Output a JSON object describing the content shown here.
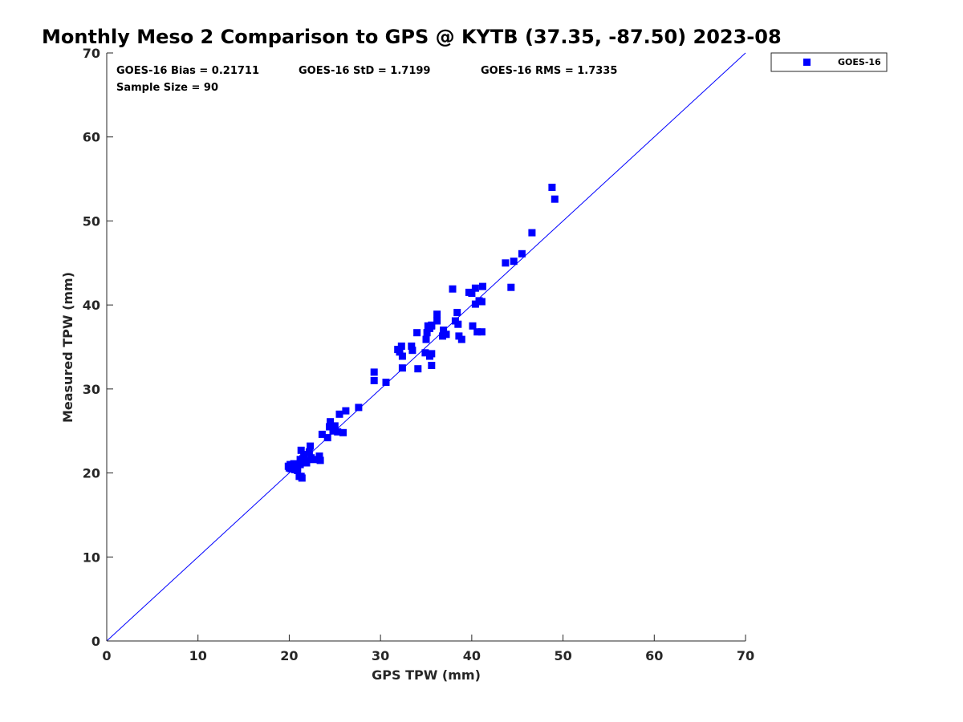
{
  "colors": {
    "marker": "#0000ff",
    "reference_line": "#0000ff",
    "axis": "#262626"
  },
  "chart_data": {
    "type": "scatter",
    "title": "Monthly Meso 2 Comparison to GPS @ KYTB (37.35, -87.50) 2023-08",
    "xlabel": "GPS TPW (mm)",
    "ylabel": "Measured TPW (mm)",
    "xlim": [
      0,
      70
    ],
    "ylim": [
      0,
      70
    ],
    "xticks": [
      "0",
      "10",
      "20",
      "30",
      "40",
      "50",
      "60",
      "70"
    ],
    "yticks": [
      "0",
      "10",
      "20",
      "30",
      "40",
      "50",
      "60",
      "70"
    ],
    "legend": {
      "placement": "outside-top-right",
      "entries": [
        "GOES-16"
      ]
    },
    "stats": {
      "bias": "GOES-16 Bias = 0.21711",
      "std": "GOES-16 StD = 1.7199",
      "rms": "GOES-16 RMS = 1.7335",
      "sample_size": "Sample Size = 90"
    },
    "reference_line": {
      "label": "1:1 line",
      "from": [
        0,
        0
      ],
      "to": [
        70,
        70
      ]
    },
    "series": [
      {
        "name": "GOES-16",
        "marker": "square",
        "x": [
          48.8,
          49.1,
          46.6,
          45.5,
          44.6,
          43.7,
          44.3,
          41.2,
          40.4,
          40.0,
          39.7,
          40.8,
          41.1,
          40.4,
          40.1,
          41.1,
          40.6,
          37.9,
          38.4,
          38.2,
          38.5,
          36.2,
          36.2,
          35.6,
          35.2,
          35.4,
          35.1,
          35.0,
          36.8,
          37.2,
          36.9,
          38.6,
          38.9,
          34.0,
          33.4,
          33.5,
          32.3,
          31.9,
          32.1,
          32.4,
          34.9,
          35.4,
          35.6,
          35.6,
          34.1,
          32.4,
          35.6,
          29.3,
          29.3,
          30.6,
          27.6,
          26.2,
          25.5,
          24.5,
          24.4,
          25.0,
          24.8,
          25.3,
          25.9,
          23.6,
          24.2,
          23.3,
          23.4,
          23.3,
          22.3,
          22.2,
          22.4,
          22.6,
          21.9,
          21.6,
          21.9,
          21.3,
          21.6,
          21.2,
          21.3,
          21.1,
          20.8,
          20.5,
          20.9,
          20.6,
          20.4,
          20.1,
          20.2,
          19.9,
          20.0,
          20.6,
          20.9,
          21.2,
          21.5,
          21.4
        ],
        "y": [
          54.0,
          52.6,
          48.6,
          46.1,
          45.2,
          45.0,
          42.1,
          42.2,
          42.0,
          41.4,
          41.5,
          40.5,
          40.4,
          40.1,
          37.5,
          36.8,
          36.8,
          41.9,
          39.1,
          38.1,
          37.7,
          38.9,
          38.1,
          37.5,
          37.5,
          37.2,
          36.7,
          35.9,
          36.3,
          36.5,
          37.0,
          36.3,
          35.9,
          36.7,
          35.1,
          34.6,
          35.1,
          34.7,
          34.4,
          33.9,
          34.3,
          33.9,
          34.2,
          32.8,
          32.4,
          32.5,
          37.6,
          32.0,
          31.0,
          30.8,
          27.8,
          27.4,
          27.0,
          26.1,
          25.5,
          25.6,
          25.0,
          24.9,
          24.8,
          24.6,
          24.2,
          22.0,
          21.5,
          21.6,
          23.2,
          22.5,
          21.8,
          21.6,
          21.5,
          22.2,
          21.2,
          22.7,
          21.5,
          21.0,
          19.6,
          19.6,
          21.0,
          21.1,
          20.6,
          20.9,
          20.9,
          21.0,
          20.5,
          20.8,
          20.6,
          20.4,
          20.3,
          21.6,
          21.7,
          19.4
        ]
      }
    ]
  }
}
